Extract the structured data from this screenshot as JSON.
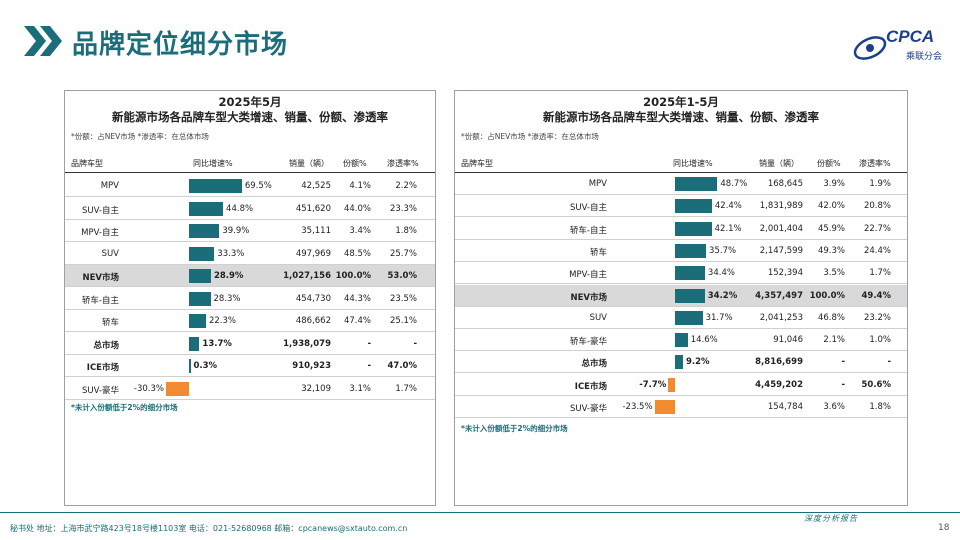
{
  "header": {
    "title": "品牌定位细分市场",
    "logo_text": "CPCA",
    "logo_sub": "乘联分会"
  },
  "colors": {
    "accent": "#1b6d7a",
    "positive_bar": "#1b6d7a",
    "negative_bar": "#f28a30",
    "highlight_row": "#d9d9d9"
  },
  "left_panel": {
    "title_line1": "2025年5月",
    "title_line2": "新能源市场各品牌车型大类增速、销量、份额、渗透率",
    "note": "*份额：占NEV市场   *渗透率：在总体市场",
    "footnote": "*未计入份额低于2%的细分市场",
    "headers": {
      "name": "品牌车型",
      "growth": "同比增速%",
      "sales": "销量（辆）",
      "share": "份额%",
      "penetration": "渗透率%"
    }
  },
  "right_panel": {
    "title_line1": "2025年1-5月",
    "title_line2": "新能源市场各品牌车型大类增速、销量、份额、渗透率",
    "note": "*份额：占NEV市场   *渗透率：在总体市场",
    "footnote": "*未计入份额低于2%的细分市场",
    "headers": {
      "name": "品牌车型",
      "growth": "同比增速%",
      "sales": "销量（辆）",
      "share": "份额%",
      "penetration": "渗透率%"
    }
  },
  "chart_data": [
    {
      "type": "table",
      "title": "2025年5月 新能源市场各品牌车型大类增速、销量、份额、渗透率",
      "columns": [
        "品牌车型",
        "同比增速%",
        "销量（辆）",
        "份额%",
        "渗透率%"
      ],
      "growth_range": [
        -30.3,
        69.5
      ],
      "rows": [
        {
          "name": "MPV",
          "growth": 69.5,
          "growth_label": "69.5%",
          "sales": "42,525",
          "share": "4.1%",
          "penetration": "2.2%",
          "style": "normal"
        },
        {
          "name": "SUV-自主",
          "growth": 44.8,
          "growth_label": "44.8%",
          "sales": "451,620",
          "share": "44.0%",
          "penetration": "23.3%",
          "style": "normal"
        },
        {
          "name": "MPV-自主",
          "growth": 39.9,
          "growth_label": "39.9%",
          "sales": "35,111",
          "share": "3.4%",
          "penetration": "1.8%",
          "style": "normal"
        },
        {
          "name": "SUV",
          "growth": 33.3,
          "growth_label": "33.3%",
          "sales": "497,969",
          "share": "48.5%",
          "penetration": "25.7%",
          "style": "normal"
        },
        {
          "name": "NEV市场",
          "growth": 28.9,
          "growth_label": "28.9%",
          "sales": "1,027,156",
          "share": "100.0%",
          "penetration": "53.0%",
          "style": "highlight"
        },
        {
          "name": "轿车-自主",
          "growth": 28.3,
          "growth_label": "28.3%",
          "sales": "454,730",
          "share": "44.3%",
          "penetration": "23.5%",
          "style": "normal"
        },
        {
          "name": "轿车",
          "growth": 22.3,
          "growth_label": "22.3%",
          "sales": "486,662",
          "share": "47.4%",
          "penetration": "25.1%",
          "style": "normal"
        },
        {
          "name": "总市场",
          "growth": 13.7,
          "growth_label": "13.7%",
          "sales": "1,938,079",
          "share": "-",
          "penetration": "-",
          "style": "bold"
        },
        {
          "name": "ICE市场",
          "growth": 0.3,
          "growth_label": "0.3%",
          "sales": "910,923",
          "share": "-",
          "penetration": "47.0%",
          "style": "bold"
        },
        {
          "name": "SUV-豪华",
          "growth": -30.3,
          "growth_label": "-30.3%",
          "sales": "32,109",
          "share": "3.1%",
          "penetration": "1.7%",
          "style": "normal"
        }
      ]
    },
    {
      "type": "table",
      "title": "2025年1-5月 新能源市场各品牌车型大类增速、销量、份额、渗透率",
      "columns": [
        "品牌车型",
        "同比增速%",
        "销量（辆）",
        "份额%",
        "渗透率%"
      ],
      "growth_range": [
        -23.5,
        48.7
      ],
      "rows": [
        {
          "name": "MPV",
          "growth": 48.7,
          "growth_label": "48.7%",
          "sales": "168,645",
          "share": "3.9%",
          "penetration": "1.9%",
          "style": "normal"
        },
        {
          "name": "SUV-自主",
          "growth": 42.4,
          "growth_label": "42.4%",
          "sales": "1,831,989",
          "share": "42.0%",
          "penetration": "20.8%",
          "style": "normal"
        },
        {
          "name": "轿车-自主",
          "growth": 42.1,
          "growth_label": "42.1%",
          "sales": "2,001,404",
          "share": "45.9%",
          "penetration": "22.7%",
          "style": "normal"
        },
        {
          "name": "轿车",
          "growth": 35.7,
          "growth_label": "35.7%",
          "sales": "2,147,599",
          "share": "49.3%",
          "penetration": "24.4%",
          "style": "normal"
        },
        {
          "name": "MPV-自主",
          "growth": 34.4,
          "growth_label": "34.4%",
          "sales": "152,394",
          "share": "3.5%",
          "penetration": "1.7%",
          "style": "normal"
        },
        {
          "name": "NEV市场",
          "growth": 34.2,
          "growth_label": "34.2%",
          "sales": "4,357,497",
          "share": "100.0%",
          "penetration": "49.4%",
          "style": "highlight"
        },
        {
          "name": "SUV",
          "growth": 31.7,
          "growth_label": "31.7%",
          "sales": "2,041,253",
          "share": "46.8%",
          "penetration": "23.2%",
          "style": "normal"
        },
        {
          "name": "轿车-豪华",
          "growth": 14.6,
          "growth_label": "14.6%",
          "sales": "91,046",
          "share": "2.1%",
          "penetration": "1.0%",
          "style": "normal"
        },
        {
          "name": "总市场",
          "growth": 9.2,
          "growth_label": "9.2%",
          "sales": "8,816,699",
          "share": "-",
          "penetration": "-",
          "style": "bold"
        },
        {
          "name": "ICE市场",
          "growth": -7.7,
          "growth_label": "-7.7%",
          "sales": "4,459,202",
          "share": "-",
          "penetration": "50.6%",
          "style": "bold"
        },
        {
          "name": "SUV-豪华",
          "growth": -23.5,
          "growth_label": "-23.5%",
          "sales": "154,784",
          "share": "3.6%",
          "penetration": "1.8%",
          "style": "normal"
        }
      ]
    }
  ],
  "footer": {
    "text": "秘书处  地址：上海市武宁路423号18号楼1103室  电话：021-52680968  邮箱：cpcanews@sxtauto.com.cn",
    "right_text": "深度分析报告",
    "page": "18"
  }
}
